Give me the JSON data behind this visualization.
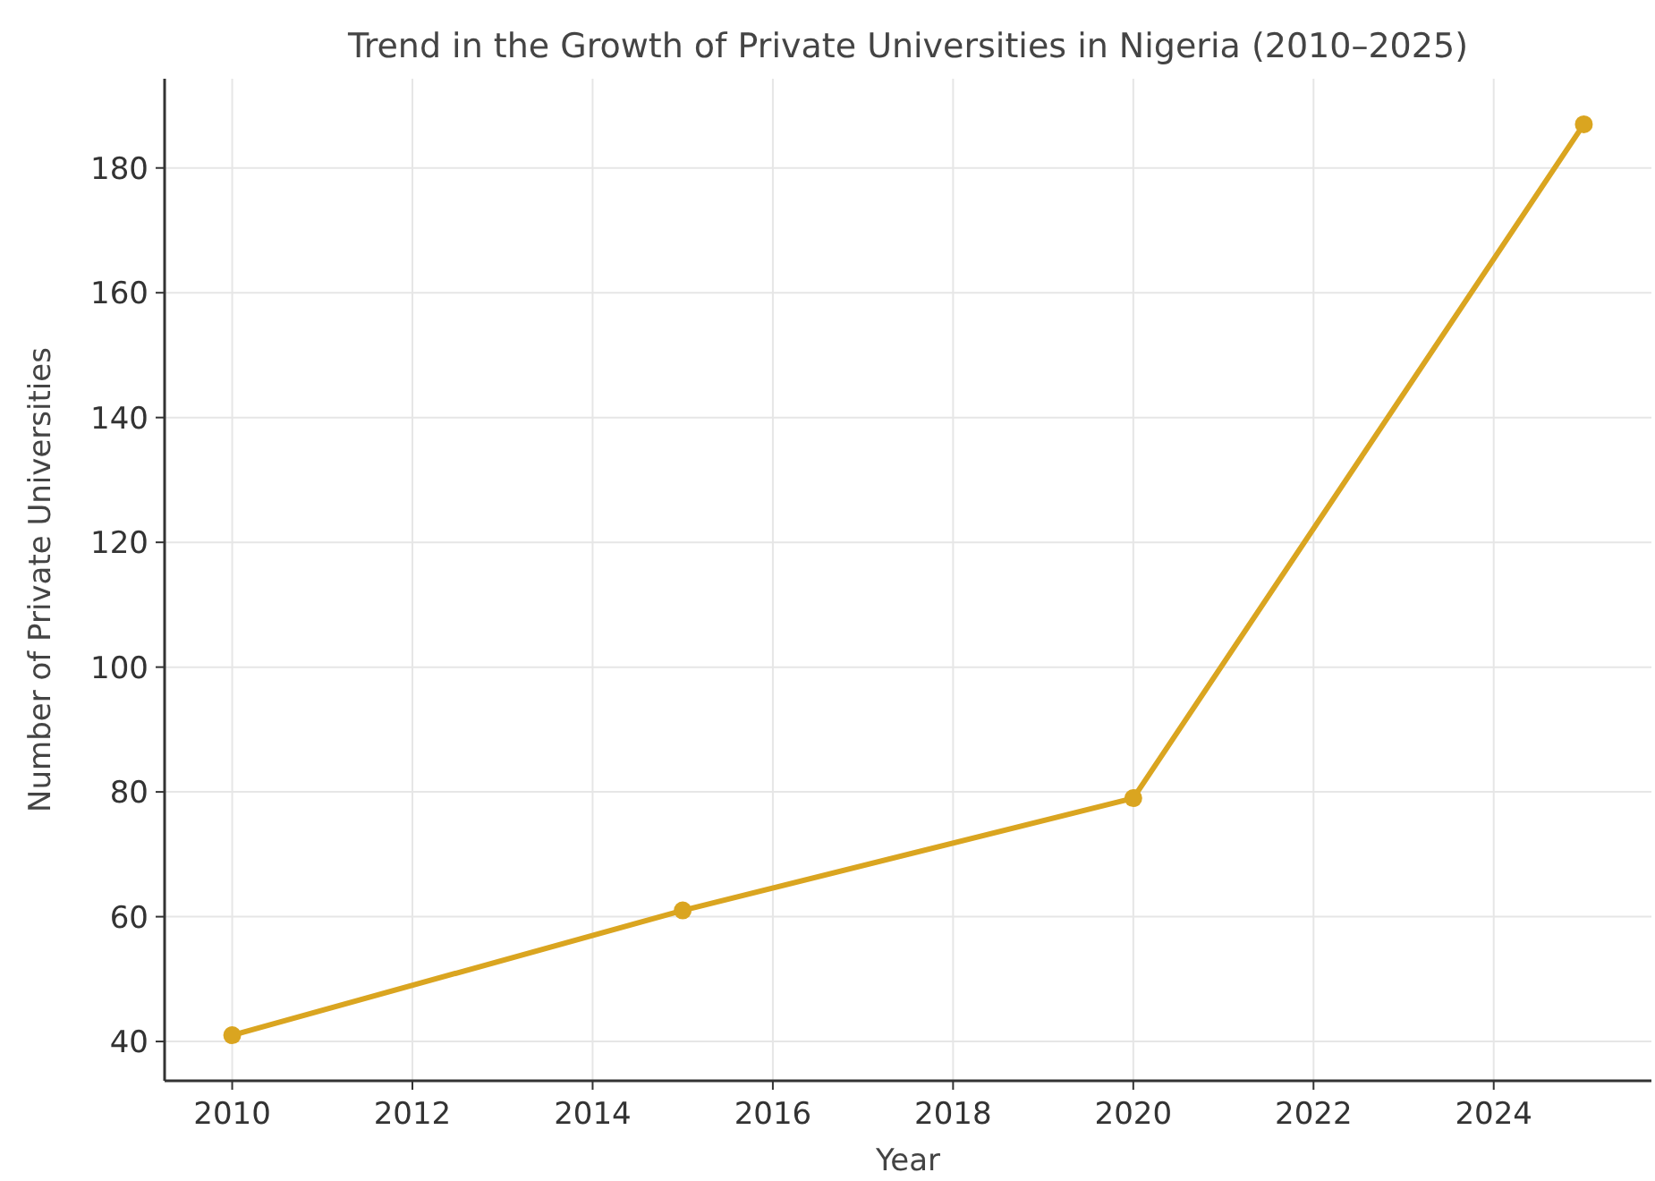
{
  "chart_data": {
    "type": "line",
    "title": "Trend in the Growth of Private Universities in Nigeria (2010–2025)",
    "xlabel": "Year",
    "ylabel": "Number of Private Universities",
    "x": [
      2010,
      2015,
      2020,
      2025
    ],
    "series": [
      {
        "color": "#daa520",
        "values": [
          41,
          61,
          79,
          187
        ]
      }
    ],
    "xlim": [
      2009.25,
      2025.75
    ],
    "xticks": [
      2010,
      2012,
      2014,
      2016,
      2018,
      2020,
      2022,
      2024
    ],
    "ylim": [
      33.7,
      194.3
    ],
    "yticks": [
      40,
      60,
      80,
      100,
      120,
      140,
      160,
      180
    ],
    "grid": true,
    "marker": "circle",
    "line_style": "solid"
  }
}
